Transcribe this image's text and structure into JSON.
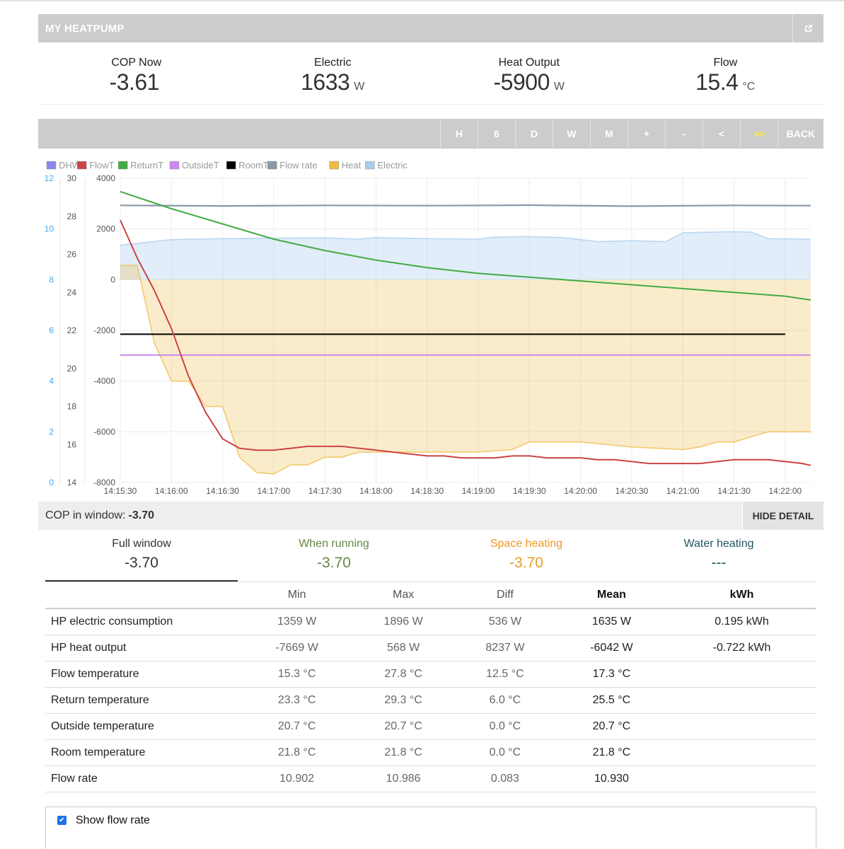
{
  "app": {
    "title": "MY HEATPUMP",
    "external_icon": "external-link-icon"
  },
  "stats": [
    {
      "label": "COP Now",
      "value": "-3.61",
      "unit": ""
    },
    {
      "label": "Electric",
      "value": "1633",
      "unit": "W"
    },
    {
      "label": "Heat Output",
      "value": "-5900",
      "unit": "W"
    },
    {
      "label": "Flow",
      "value": "15.4",
      "unit": "°C"
    }
  ],
  "toolbar": {
    "buttons": [
      "H",
      "6",
      "D",
      "W",
      "M",
      "+",
      "-",
      "<",
      ">>",
      "BACK"
    ],
    "highlighted": ">>"
  },
  "chart_data": {
    "type": "line",
    "legend": [
      {
        "name": "DHW",
        "color": "#8888ee"
      },
      {
        "name": "FlowT",
        "color": "#cc4444"
      },
      {
        "name": "ReturnT",
        "color": "#44aa44"
      },
      {
        "name": "OutsideT",
        "color": "#cc88ee"
      },
      {
        "name": "RoomT",
        "color": "#000000"
      },
      {
        "name": "Flow rate",
        "color": "#8899aa"
      },
      {
        "name": "Heat",
        "color": "#eebb44"
      },
      {
        "name": "Electric",
        "color": "#aaccee"
      }
    ],
    "legend_position": "top-left",
    "grid": true,
    "x_ticks": [
      "14:15:30",
      "14:16:00",
      "14:16:30",
      "14:17:00",
      "14:17:30",
      "14:18:00",
      "14:18:30",
      "14:19:00",
      "14:19:30",
      "14:20:00",
      "14:20:30",
      "14:21:00",
      "14:21:30",
      "14:22:00"
    ],
    "axis_flow_rate": {
      "ticks": [
        "0",
        "2",
        "4",
        "6",
        "8",
        "10",
        "12"
      ],
      "range": [
        0,
        12
      ],
      "color": "#44aaee"
    },
    "axis_temp": {
      "ticks": [
        "14",
        "16",
        "18",
        "20",
        "22",
        "24",
        "26",
        "28",
        "30"
      ],
      "range": [
        14,
        30
      ]
    },
    "axis_power": {
      "ticks": [
        "-8000",
        "-6000",
        "-4000",
        "-2000",
        "0",
        "2000",
        "4000"
      ],
      "range": [
        -8000,
        4000
      ]
    },
    "x_range": [
      "14:15:30",
      "14:22:15"
    ],
    "series": [
      {
        "name": "FlowT",
        "axis": "temp",
        "color": "#cc4444",
        "x": [
          "14:15:30",
          "14:15:40",
          "14:15:50",
          "14:16:00",
          "14:16:10",
          "14:16:20",
          "14:16:30",
          "14:16:40",
          "14:16:50",
          "14:17:00",
          "14:17:10",
          "14:17:20",
          "14:17:30",
          "14:17:40",
          "14:17:50",
          "14:18:00",
          "14:18:10",
          "14:18:20",
          "14:18:30",
          "14:18:40",
          "14:18:50",
          "14:19:00",
          "14:19:10",
          "14:19:20",
          "14:19:30",
          "14:19:40",
          "14:19:50",
          "14:20:00",
          "14:20:10",
          "14:20:20",
          "14:20:30",
          "14:20:40",
          "14:20:50",
          "14:21:00",
          "14:21:10",
          "14:21:20",
          "14:21:30",
          "14:21:40",
          "14:21:50",
          "14:22:00",
          "14:22:10",
          "14:22:15"
        ],
        "values": [
          27.8,
          25.8,
          24.1,
          22.1,
          19.6,
          17.7,
          16.3,
          15.8,
          15.7,
          15.7,
          15.8,
          15.9,
          15.9,
          15.9,
          15.8,
          15.7,
          15.6,
          15.5,
          15.4,
          15.4,
          15.3,
          15.3,
          15.3,
          15.4,
          15.4,
          15.3,
          15.3,
          15.3,
          15.2,
          15.2,
          15.1,
          15.0,
          15.0,
          15.0,
          15.0,
          15.1,
          15.2,
          15.2,
          15.2,
          15.1,
          15.0,
          14.9
        ]
      },
      {
        "name": "ReturnT",
        "axis": "temp",
        "color": "#44aa44",
        "x": [
          "14:15:30",
          "14:16:00",
          "14:16:30",
          "14:17:00",
          "14:17:30",
          "14:18:00",
          "14:18:30",
          "14:19:00",
          "14:19:30",
          "14:20:00",
          "14:20:30",
          "14:21:00",
          "14:21:30",
          "14:22:00",
          "14:22:15"
        ],
        "values": [
          29.3,
          28.4,
          27.6,
          26.8,
          26.2,
          25.7,
          25.3,
          25.0,
          24.8,
          24.6,
          24.4,
          24.2,
          24.0,
          23.8,
          23.6
        ]
      },
      {
        "name": "OutsideT",
        "axis": "temp",
        "color": "#cc88ee",
        "x": [
          "14:15:30",
          "14:22:15"
        ],
        "values": [
          20.7,
          20.7
        ]
      },
      {
        "name": "RoomT",
        "axis": "temp",
        "color": "#000000",
        "x": [
          "14:15:30",
          "14:22:00"
        ],
        "values": [
          21.8,
          21.8
        ]
      },
      {
        "name": "Flow rate",
        "axis": "flow",
        "color": "#8899aa",
        "x": [
          "14:15:30",
          "14:16:30",
          "14:17:30",
          "14:18:30",
          "14:19:30",
          "14:20:30",
          "14:21:30",
          "14:22:15"
        ],
        "values": [
          10.93,
          10.91,
          10.93,
          10.92,
          10.94,
          10.9,
          10.93,
          10.92
        ]
      },
      {
        "name": "Electric",
        "axis": "power",
        "color": "#aaccee",
        "x": [
          "14:15:30",
          "14:16:00",
          "14:16:30",
          "14:17:00",
          "14:17:30",
          "14:17:50",
          "14:18:00",
          "14:18:30",
          "14:19:00",
          "14:19:10",
          "14:19:30",
          "14:19:50",
          "14:20:10",
          "14:20:30",
          "14:20:50",
          "14:21:00",
          "14:21:30",
          "14:21:40",
          "14:21:50",
          "14:22:15"
        ],
        "values": [
          1359,
          1580,
          1620,
          1640,
          1650,
          1600,
          1660,
          1620,
          1600,
          1680,
          1700,
          1660,
          1500,
          1540,
          1500,
          1850,
          1896,
          1880,
          1620,
          1600
        ]
      },
      {
        "name": "Heat",
        "axis": "power",
        "color": "#eebb44",
        "x": [
          "14:15:30",
          "14:15:40",
          "14:15:50",
          "14:16:00",
          "14:16:10",
          "14:16:20",
          "14:16:30",
          "14:16:40",
          "14:16:50",
          "14:17:00",
          "14:17:10",
          "14:17:20",
          "14:17:30",
          "14:17:40",
          "14:17:50",
          "14:18:00",
          "14:18:30",
          "14:19:00",
          "14:19:20",
          "14:19:30",
          "14:20:00",
          "14:20:30",
          "14:21:00",
          "14:21:10",
          "14:21:20",
          "14:21:30",
          "14:21:40",
          "14:21:50",
          "14:22:15"
        ],
        "values": [
          568,
          568,
          -2500,
          -4000,
          -4000,
          -5000,
          -5000,
          -7000,
          -7600,
          -7669,
          -7300,
          -7300,
          -7000,
          -7000,
          -6800,
          -6800,
          -6800,
          -6800,
          -6700,
          -6400,
          -6400,
          -6600,
          -6700,
          -6600,
          -6400,
          -6400,
          -6200,
          -6000,
          -6000
        ]
      }
    ]
  },
  "cop_window": {
    "label": "COP in window:",
    "value": "-3.70",
    "hide_label": "HIDE DETAIL"
  },
  "summary_tabs": [
    {
      "label": "Full window",
      "value": "-3.70",
      "color": "#333333"
    },
    {
      "label": "When running",
      "value": "-3.70",
      "color": "#668844"
    },
    {
      "label": "Space heating",
      "value": "-3.70",
      "color": "#ee9922"
    },
    {
      "label": "Water heating",
      "value": "---",
      "color": "#225566"
    }
  ],
  "table": {
    "headers": [
      "",
      "Min",
      "Max",
      "Diff",
      "Mean",
      "kWh"
    ],
    "rows": [
      [
        "HP electric consumption",
        "1359 W",
        "1896 W",
        "536 W",
        "1635 W",
        "0.195 kWh"
      ],
      [
        "HP heat output",
        "-7669 W",
        "568 W",
        "8237 W",
        "-6042 W",
        "-0.722 kWh"
      ],
      [
        "Flow temperature",
        "15.3 °C",
        "27.8 °C",
        "12.5 °C",
        "17.3 °C",
        ""
      ],
      [
        "Return temperature",
        "23.3 °C",
        "29.3 °C",
        "6.0 °C",
        "25.5 °C",
        ""
      ],
      [
        "Outside temperature",
        "20.7 °C",
        "20.7 °C",
        "0.0 °C",
        "20.7 °C",
        ""
      ],
      [
        "Room temperature",
        "21.8 °C",
        "21.8 °C",
        "0.0 °C",
        "21.8 °C",
        ""
      ],
      [
        "Flow rate",
        "10.902",
        "10.986",
        "0.083",
        "10.930",
        ""
      ]
    ]
  },
  "show_flow_rate": {
    "label": "Show flow rate",
    "checked": true
  }
}
